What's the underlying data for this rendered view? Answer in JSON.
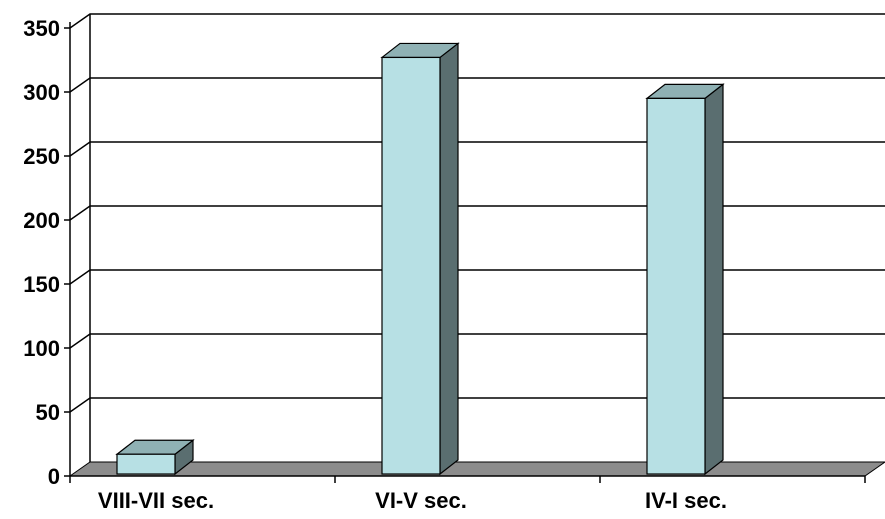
{
  "chart_data": {
    "type": "bar",
    "style": "3d-column",
    "categories": [
      "VIII-VII sec.",
      "VI-V sec.",
      "IV-I sec."
    ],
    "values": [
      17,
      327,
      295
    ],
    "ylim": [
      0,
      350
    ],
    "yticks": [
      0,
      50,
      100,
      150,
      200,
      250,
      300,
      350
    ],
    "ytick_labels": [
      "0",
      "50",
      "100",
      "150",
      "200",
      "250",
      "300",
      "350"
    ],
    "grid": true,
    "legend": "none",
    "colors": {
      "bar_front": "#b7e0e4",
      "bar_top": "#8fb1b4",
      "bar_side": "#5a6e70",
      "floor": "#8c8c8c",
      "gridline": "#000000"
    }
  }
}
